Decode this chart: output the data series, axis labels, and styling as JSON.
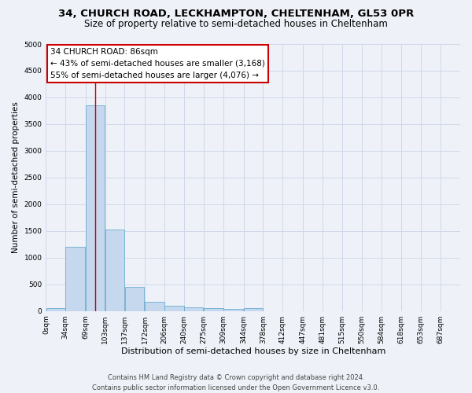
{
  "title1": "34, CHURCH ROAD, LECKHAMPTON, CHELTENHAM, GL53 0PR",
  "title2": "Size of property relative to semi-detached houses in Cheltenham",
  "xlabel": "Distribution of semi-detached houses by size in Cheltenham",
  "ylabel": "Number of semi-detached properties",
  "bin_edges": [
    0,
    34,
    69,
    103,
    137,
    172,
    206,
    240,
    275,
    309,
    344,
    378,
    412,
    447,
    481,
    515,
    550,
    584,
    618,
    653,
    687
  ],
  "bar_heights": [
    50,
    1200,
    3850,
    1530,
    450,
    175,
    100,
    65,
    50,
    35,
    50,
    0,
    0,
    0,
    0,
    0,
    0,
    0,
    0,
    0
  ],
  "bar_color": "#c5d8ed",
  "bar_edge_color": "#6aacd4",
  "grid_color": "#d0d8e8",
  "bg_color": "#eef2f8",
  "red_line_x": 86,
  "annotation_title": "34 CHURCH ROAD: 86sqm",
  "annotation_line1": "← 43% of semi-detached houses are smaller (3,168)",
  "annotation_line2": "55% of semi-detached houses are larger (4,076) →",
  "annotation_box_color": "#ffffff",
  "annotation_border_color": "#cc0000",
  "red_line_color": "#cc0000",
  "ylim": [
    0,
    5000
  ],
  "yticks": [
    0,
    500,
    1000,
    1500,
    2000,
    2500,
    3000,
    3500,
    4000,
    4500,
    5000
  ],
  "footer1": "Contains HM Land Registry data © Crown copyright and database right 2024.",
  "footer2": "Contains public sector information licensed under the Open Government Licence v3.0.",
  "title1_fontsize": 9.5,
  "title2_fontsize": 8.5,
  "xlabel_fontsize": 8,
  "ylabel_fontsize": 7.5,
  "tick_fontsize": 6.5,
  "annotation_fontsize": 7.5,
  "footer_fontsize": 6
}
